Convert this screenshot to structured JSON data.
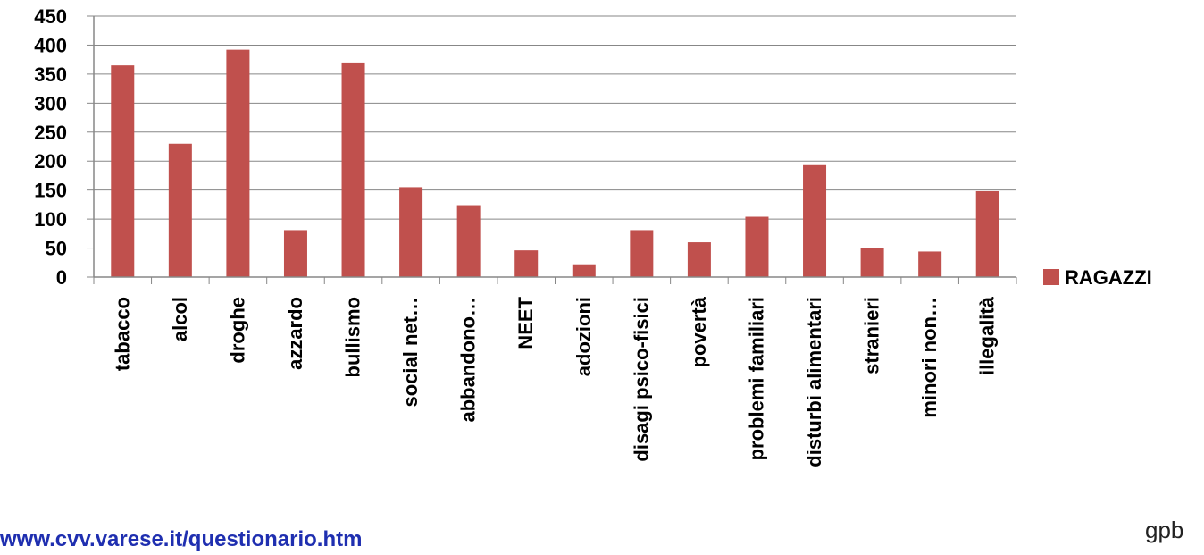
{
  "chart_data": {
    "type": "bar",
    "categories": [
      "tabacco",
      "alcol",
      "droghe",
      "azzardo",
      "bullismo",
      "social net…",
      "abbandono…",
      "NEET",
      "adozioni",
      "disagi psico-fisici",
      "povertà",
      "problemi familiari",
      "disturbi alimentari",
      "stranieri",
      "minori non…",
      "illegalità"
    ],
    "series": [
      {
        "name": "RAGAZZI",
        "values": [
          365,
          230,
          392,
          81,
          370,
          155,
          124,
          46,
          22,
          81,
          60,
          104,
          193,
          50,
          44,
          148
        ]
      }
    ],
    "yticks": [
      "0",
      "50",
      "100",
      "150",
      "200",
      "250",
      "300",
      "350",
      "400",
      "450"
    ],
    "ylim": [
      0,
      450
    ],
    "grid": true,
    "legend_position": "right",
    "colors": {
      "bar": "#c0504d",
      "grid": "#878787",
      "axis": "#878787"
    }
  },
  "footer": {
    "url": "www.cvv.varese.it/questionario.htm",
    "signature": "gpb"
  }
}
